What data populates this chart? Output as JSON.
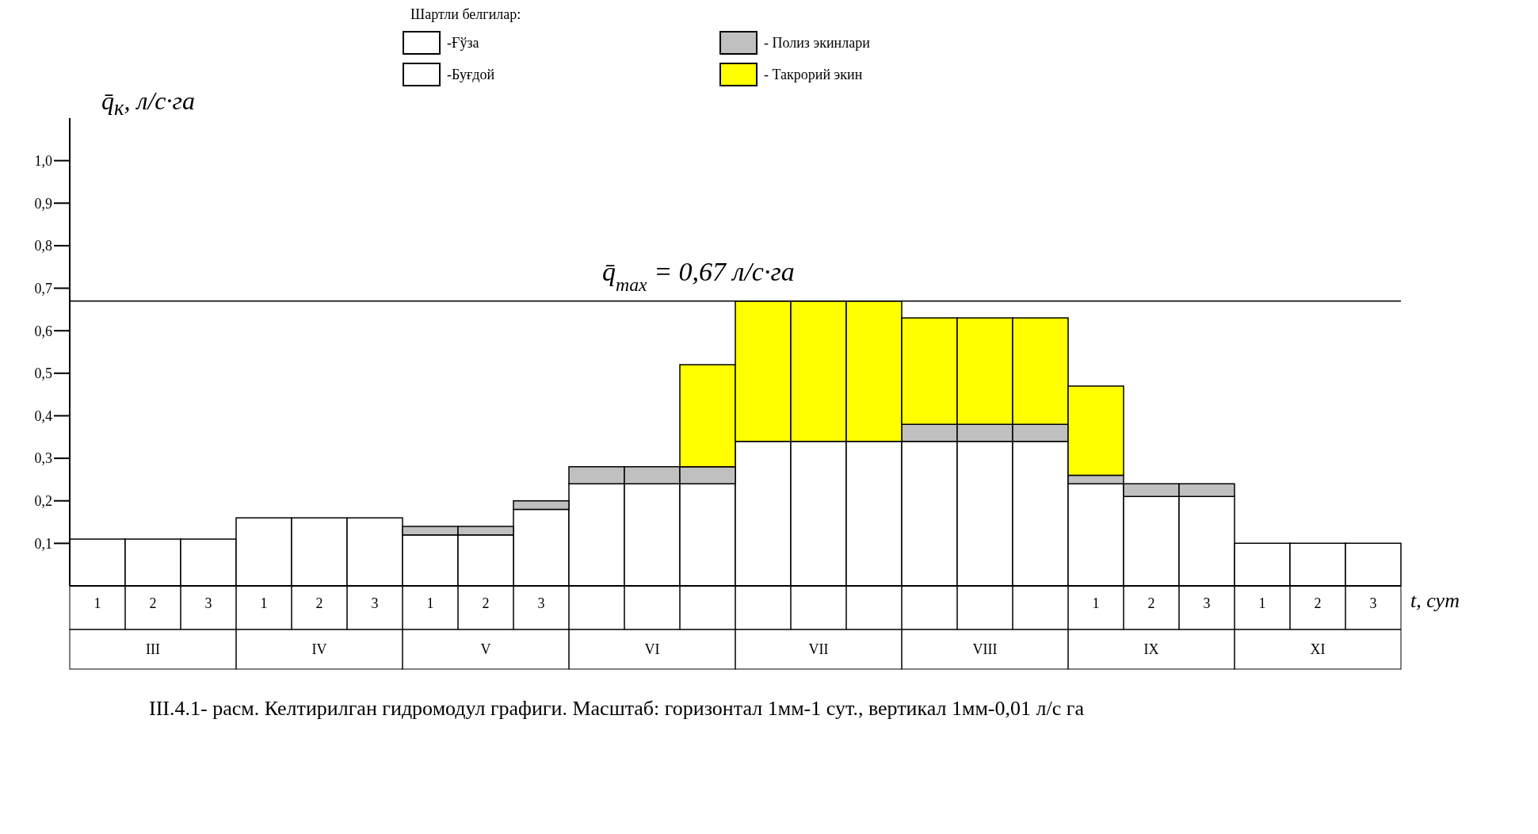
{
  "chart_data": {
    "type": "bar",
    "stacked": true,
    "legend_title": "Шартли белгилар:",
    "ylabel": "q̄$_{к}$, л/с·га",
    "xlabel": "t, сут",
    "categories": [
      "1",
      "2",
      "3",
      "1",
      "2",
      "3",
      "1",
      "2",
      "3",
      null,
      null,
      null,
      null,
      null,
      null,
      null,
      null,
      null,
      "1",
      "2",
      "3",
      "1",
      "2",
      "3"
    ],
    "series": [
      {
        "name": "-Ғўза",
        "color": "#ffffff",
        "values": [
          null,
          null,
          null,
          null,
          null,
          null,
          null,
          null,
          0.18,
          0.24,
          0.24,
          0.24,
          0.34,
          0.34,
          0.34,
          0.34,
          0.34,
          0.34,
          0.24,
          null,
          null,
          null,
          null,
          null
        ]
      },
      {
        "name": "-Буғдой",
        "color": "#ffffff",
        "values": [
          0.11,
          0.11,
          0.11,
          0.16,
          0.16,
          0.16,
          0.12,
          0.12,
          null,
          null,
          null,
          null,
          null,
          null,
          null,
          null,
          null,
          null,
          null,
          0.21,
          0.21,
          0.1,
          0.1,
          0.1
        ]
      },
      {
        "name": "- Полиз экинлари",
        "color": "#c0c0c0",
        "values": [
          null,
          null,
          null,
          null,
          null,
          null,
          0.02,
          0.02,
          0.02,
          0.04,
          0.04,
          0.04,
          null,
          null,
          null,
          0.04,
          0.04,
          0.04,
          0.02,
          0.03,
          0.03,
          null,
          null,
          null
        ]
      },
      {
        "name": "- Такрорий экин",
        "color": "#ffff00",
        "values": [
          null,
          null,
          null,
          null,
          null,
          null,
          null,
          null,
          null,
          null,
          null,
          0.24,
          0.33,
          0.33,
          0.33,
          0.25,
          0.25,
          0.25,
          0.21,
          null,
          null,
          null,
          null,
          null
        ]
      }
    ],
    "ylim": [
      0,
      1.1
    ],
    "yticks": [
      {
        "value": 0.1,
        "label": "0,1"
      },
      {
        "value": 0.2,
        "label": "0,2"
      },
      {
        "value": 0.3,
        "label": "0,3"
      },
      {
        "value": 0.4,
        "label": "0,4"
      },
      {
        "value": 0.5,
        "label": "0,5"
      },
      {
        "value": 0.6,
        "label": "0,6"
      },
      {
        "value": 0.7,
        "label": "0,7"
      },
      {
        "value": 0.8,
        "label": "0,8"
      },
      {
        "value": 0.9,
        "label": "0,9"
      },
      {
        "value": 1.0,
        "label": "1,0"
      }
    ],
    "ref_lines": [
      {
        "axis": "y",
        "value": 0.67,
        "label": "q̄$_{max}$ = 0,67  л/с·га",
        "color": "#000000"
      }
    ],
    "annotations": [
      "III",
      "IV",
      "V",
      "VI",
      "VII",
      "VIII",
      "IX",
      "XI",
      "III.4.1- расм. Келтирилган гидромодул графиги.  Масштаб: горизонтал 1мм-1 сут., вертикал 1мм-0,01 л/с га"
    ],
    "legend": "top"
  }
}
